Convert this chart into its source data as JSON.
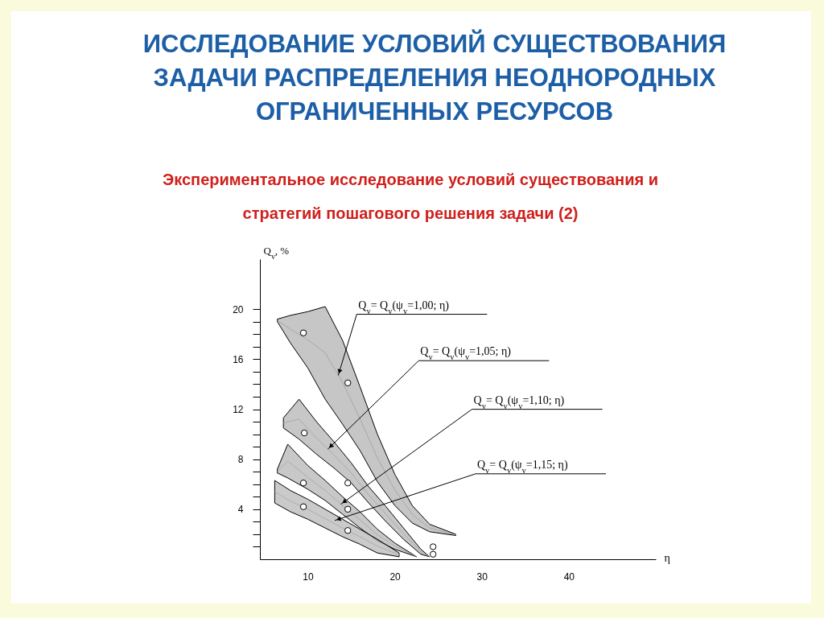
{
  "chart_data": {
    "type": "line",
    "title": "ИССЛЕДОВАНИЕ УСЛОВИЙ СУЩЕСТВОВАНИЯ ЗАДАЧИ РАСПРЕДЕЛЕНИЯ НЕОДНОРОДНЫХ ОГРАНИЧЕННЫХ РЕСУРСОВ",
    "subtitle": "Экспериментальное исследование условий существования и стратегий пошагового решения задачи (2)",
    "xlabel": "η",
    "ylabel": "Q$_{v}$, %",
    "xlim": [
      4.5,
      50
    ],
    "ylim": [
      0,
      24
    ],
    "xticks": [
      10,
      20,
      30,
      40
    ],
    "yticks": [
      {
        "value": 1,
        "label": null
      },
      {
        "value": 2,
        "label": null
      },
      {
        "value": 3,
        "label": null
      },
      4,
      {
        "value": 5,
        "label": null
      },
      {
        "value": 6,
        "label": null
      },
      {
        "value": 7,
        "label": null
      },
      8,
      {
        "value": 9,
        "label": null
      },
      {
        "value": 10,
        "label": null
      },
      {
        "value": 11,
        "label": null
      },
      12,
      {
        "value": 13,
        "label": null
      },
      {
        "value": 14,
        "label": null
      },
      {
        "value": 15,
        "label": null
      },
      16,
      {
        "value": 17,
        "label": null
      },
      {
        "value": 18,
        "label": null
      },
      {
        "value": 19,
        "label": null
      },
      20
    ],
    "series": [
      {
        "color": "#a0a0a0",
        "x": [
          6.5,
          8,
          10,
          12,
          14,
          16,
          18,
          20,
          22,
          24,
          27
        ],
        "values": [
          19.1,
          18.4,
          17.55,
          16.5,
          14.15,
          11.25,
          8.1,
          5.55,
          3.6,
          2.5,
          1.95
        ],
        "lower": [
          19.0,
          17.3,
          15.3,
          12.8,
          10.8,
          8.7,
          6.2,
          4.3,
          2.9,
          2.2,
          1.9
        ],
        "upper": [
          19.2,
          19.5,
          19.8,
          20.2,
          17.5,
          13.8,
          10.0,
          6.8,
          4.3,
          2.8,
          2.0
        ]
      },
      {
        "color": "#a2a2a2",
        "x": [
          7.2,
          9,
          11,
          13,
          15,
          17,
          19,
          21,
          23,
          24
        ],
        "values": [
          10.9,
          11.2,
          9.7,
          8.35,
          6.9,
          5.15,
          3.6,
          2.05,
          0.6,
          0.2
        ],
        "lower": [
          10.5,
          9.6,
          8.4,
          7.3,
          6.1,
          4.5,
          3.0,
          1.6,
          0.4,
          0.2
        ],
        "upper": [
          11.3,
          12.8,
          11.0,
          9.4,
          7.7,
          5.8,
          4.2,
          2.5,
          0.8,
          0.2
        ]
      },
      {
        "color": "#a4a4a4",
        "x": [
          6.5,
          7.7,
          10,
          12,
          14,
          16,
          18,
          20,
          22.5
        ],
        "values": [
          7.05,
          7.85,
          6.55,
          5.5,
          4.3,
          3.15,
          1.95,
          1.05,
          0.2
        ],
        "lower": [
          6.9,
          6.5,
          5.6,
          4.7,
          3.6,
          2.5,
          1.5,
          0.8,
          0.2
        ],
        "upper": [
          7.2,
          9.2,
          7.5,
          6.3,
          5.0,
          3.8,
          2.4,
          1.3,
          0.2
        ]
      },
      {
        "color": "#a6a6a6",
        "x": [
          6.2,
          8,
          10,
          12,
          14,
          16,
          18,
          20.5
        ],
        "values": [
          5.4,
          4.65,
          4.0,
          3.25,
          2.5,
          1.8,
          1.05,
          0.35
        ],
        "lower": [
          4.5,
          3.8,
          3.2,
          2.5,
          1.8,
          1.2,
          0.5,
          0.2
        ],
        "upper": [
          6.3,
          5.5,
          4.8,
          4.0,
          3.2,
          2.4,
          1.6,
          0.5
        ]
      },
      {
        "type": "scatter",
        "color": "#ffffff",
        "marker": "circle",
        "x": [
          9.5,
          14.6,
          9.6,
          9.5,
          14.6,
          9.5,
          14.6,
          14.6,
          24.4,
          24.4
        ],
        "values": [
          18.1,
          14.1,
          10.1,
          6.1,
          6.1,
          4.2,
          4.0,
          2.3,
          1.0,
          0.4
        ]
      }
    ],
    "annotations": [
      {
        "text": "Q$_{v}$= Q$_{v}$(ψ$_{v}$=1,00; η)",
        "x": 13.5,
        "y": 14.7
      },
      {
        "text": "Q$_{v}$= Q$_{v}$(ψ$_{v}$=1,05; η)",
        "x": 12.3,
        "y": 8.8
      },
      {
        "text": "Q$_{v}$= Q$_{v}$(ψ$_{v}$=1,10; η)",
        "x": 13.8,
        "y": 4.4
      },
      {
        "text": "Q$_{v}$= Q$_{v}$(ψ$_{v}$=1,15; η)",
        "x": 13.1,
        "y": 3.1
      }
    ]
  }
}
